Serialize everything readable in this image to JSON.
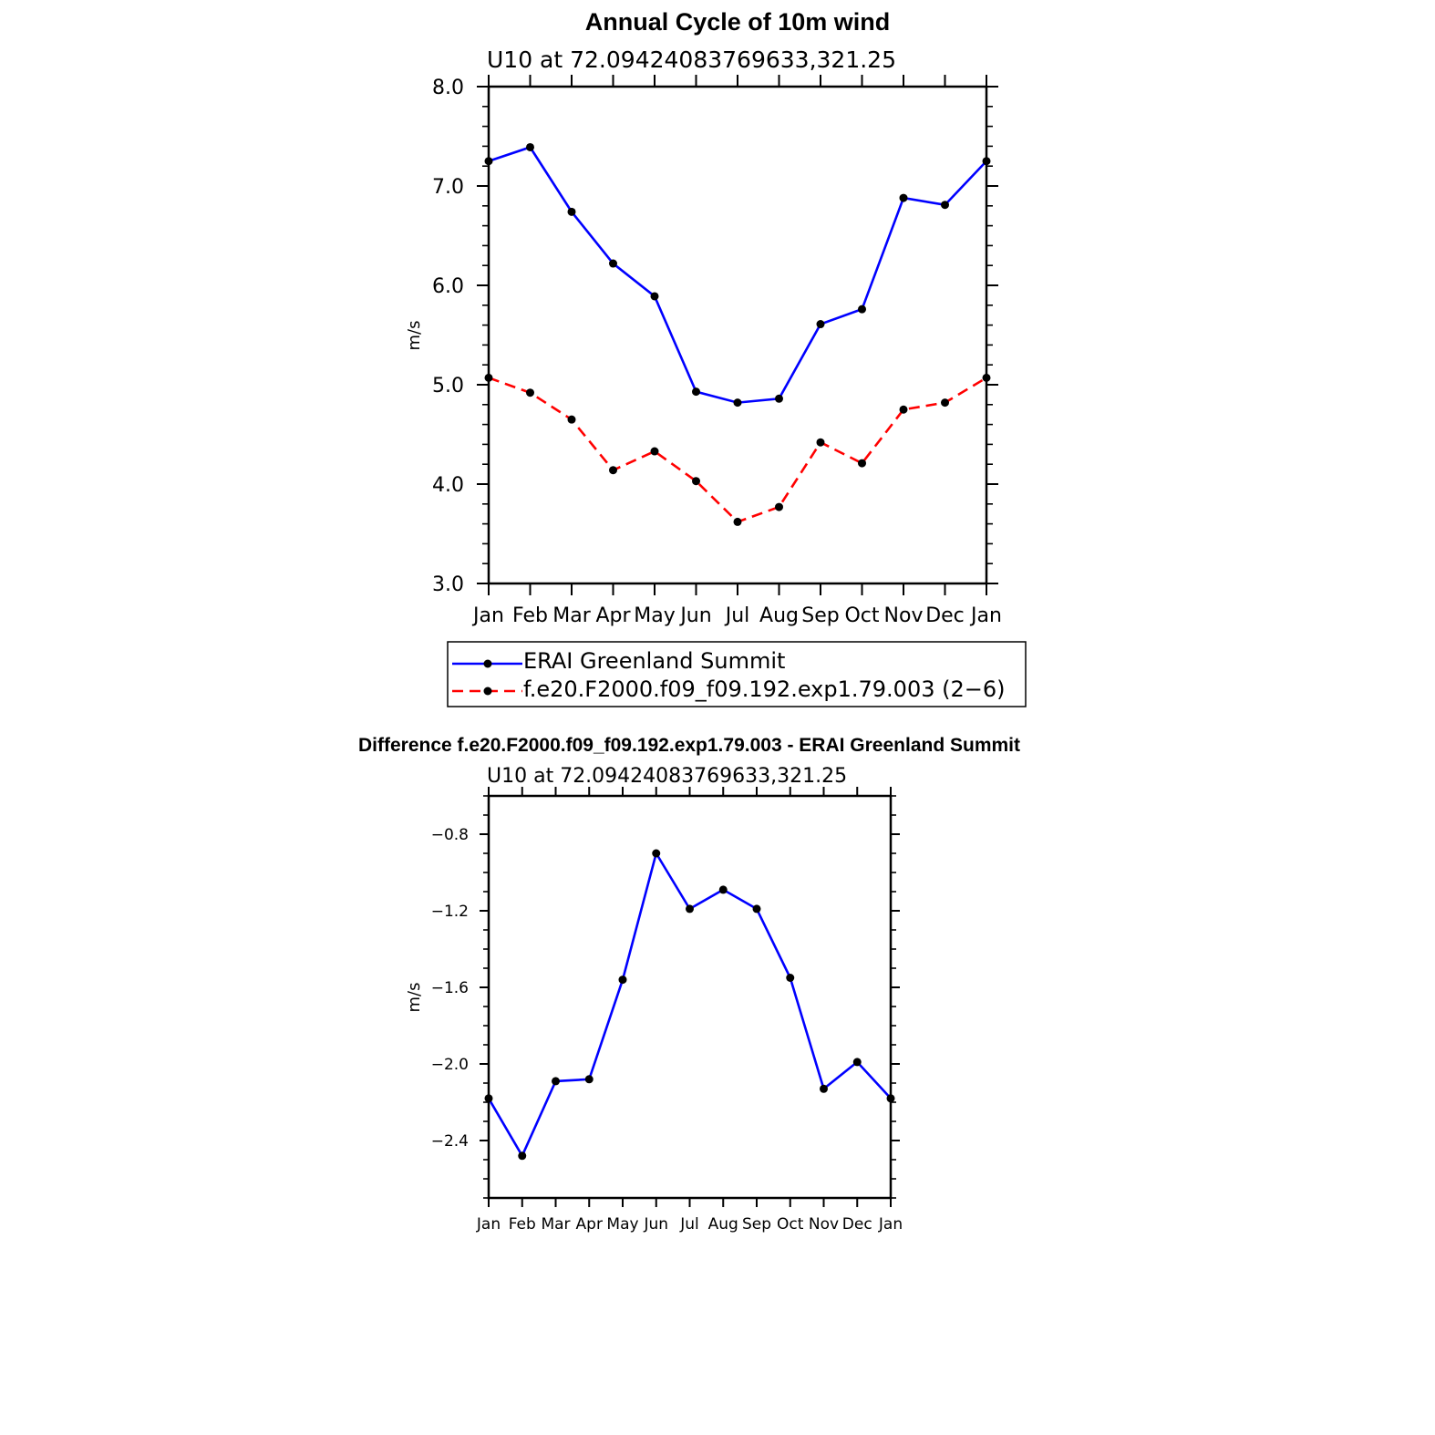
{
  "chart_data": [
    {
      "type": "line",
      "title": "Annual Cycle of 10m wind",
      "subtitle": "U10 at 72.09424083769633,321.25",
      "xlabel": "",
      "ylabel": "m/s",
      "categories": [
        "Jan",
        "Feb",
        "Mar",
        "Apr",
        "May",
        "Jun",
        "Jul",
        "Aug",
        "Sep",
        "Oct",
        "Nov",
        "Dec",
        "Jan"
      ],
      "ylim": [
        3.0,
        8.0
      ],
      "yticks": [
        "3.0",
        "4.0",
        "5.0",
        "6.0",
        "7.0",
        "8.0"
      ],
      "series": [
        {
          "name": "ERAI Greenland Summit",
          "color": "#0000ff",
          "dash": "solid",
          "values": [
            7.25,
            7.39,
            6.74,
            6.22,
            5.89,
            4.93,
            4.82,
            4.86,
            5.61,
            5.76,
            6.88,
            6.81,
            7.25
          ]
        },
        {
          "name": "f.e20.F2000.f09_f09.192.exp1.79.003 (2−6)",
          "color": "#ff0000",
          "dash": "dashed",
          "values": [
            5.07,
            4.92,
            4.65,
            4.14,
            4.33,
            4.03,
            3.62,
            3.77,
            4.42,
            4.21,
            4.75,
            4.82,
            5.07
          ]
        }
      ],
      "legend": {
        "position": "bottom",
        "entries": [
          "ERAI Greenland Summit",
          "f.e20.F2000.f09_f09.192.exp1.79.003 (2−6)"
        ]
      },
      "grid": false
    },
    {
      "type": "line",
      "title": "Difference f.e20.F2000.f09_f09.192.exp1.79.003 - ERAI Greenland Summit",
      "subtitle": "U10 at 72.09424083769633,321.25",
      "xlabel": "",
      "ylabel": "m/s",
      "categories": [
        "Jan",
        "Feb",
        "Mar",
        "Apr",
        "May",
        "Jun",
        "Jul",
        "Aug",
        "Sep",
        "Oct",
        "Nov",
        "Dec",
        "Jan"
      ],
      "ylim": [
        -2.7,
        -0.6
      ],
      "yticks": [
        "−2.4",
        "−2.0",
        "−1.6",
        "−1.2",
        "−0.8"
      ],
      "series": [
        {
          "color": "#0000ff",
          "dash": "solid",
          "values": [
            -2.18,
            -2.48,
            -2.09,
            -2.08,
            -1.56,
            -0.9,
            -1.19,
            -1.09,
            -1.19,
            -1.55,
            -2.13,
            -1.99,
            -2.18
          ]
        }
      ],
      "grid": false
    }
  ]
}
